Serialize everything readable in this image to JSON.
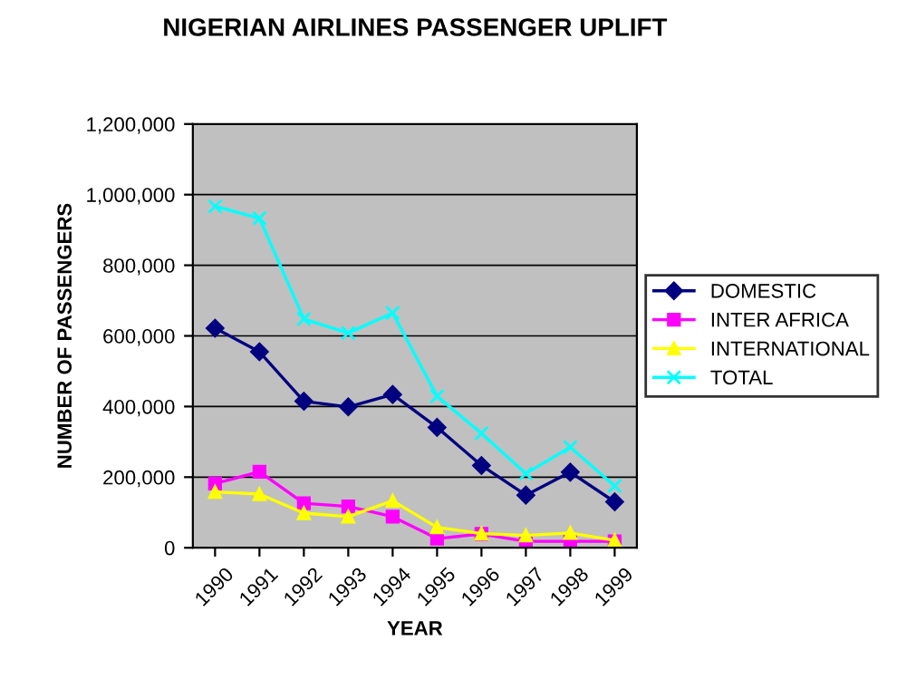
{
  "chart_data": {
    "type": "line",
    "title": "NIGERIAN AIRLINES PASSENGER UPLIFT",
    "xlabel": "YEAR",
    "ylabel": "NUMBER OF PASSENGERS",
    "categories": [
      "1990",
      "1991",
      "1992",
      "1993",
      "1994",
      "1995",
      "1996",
      "1997",
      "1998",
      "1999"
    ],
    "series": [
      {
        "name": "DOMESTIC",
        "color": "#000080",
        "marker": "diamond",
        "values": [
          622000,
          555000,
          415000,
          399000,
          434000,
          341000,
          233000,
          149000,
          214000,
          130000
        ]
      },
      {
        "name": "INTER AFRICA",
        "color": "#ff00ff",
        "marker": "square",
        "values": [
          182000,
          215000,
          126000,
          117000,
          88000,
          26000,
          39000,
          18000,
          18000,
          18000
        ]
      },
      {
        "name": "INTERNATIONAL",
        "color": "#ffff00",
        "marker": "triangle",
        "values": [
          158000,
          152000,
          98000,
          88000,
          133000,
          58000,
          40000,
          35000,
          42000,
          21000
        ]
      },
      {
        "name": "TOTAL",
        "color": "#00ffff",
        "marker": "cross",
        "values": [
          967000,
          933000,
          648000,
          608000,
          665000,
          429000,
          324000,
          210000,
          285000,
          175000
        ]
      }
    ],
    "ylim": [
      0,
      1200000
    ],
    "yticks": [
      {
        "value": 0,
        "label": "0"
      },
      {
        "value": 200000,
        "label": "200,000"
      },
      {
        "value": 400000,
        "label": "400,000"
      },
      {
        "value": 600000,
        "label": "600,000"
      },
      {
        "value": 800000,
        "label": "800,000"
      },
      {
        "value": 1000000,
        "label": "1,000,000"
      },
      {
        "value": 1200000,
        "label": "1,200,000"
      }
    ],
    "grid": "y",
    "legend": "right",
    "line_style": "solid"
  }
}
